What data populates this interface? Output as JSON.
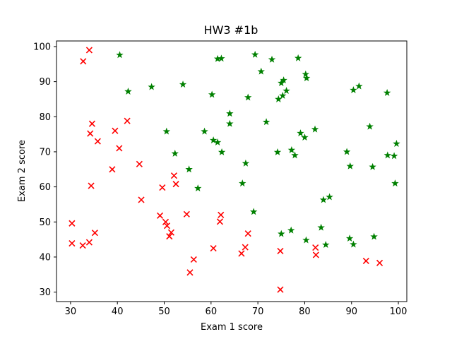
{
  "chart_data": {
    "type": "scatter",
    "title": "HW3 #1b",
    "xlabel": "Exam 1 score",
    "ylabel": "Exam 2 score",
    "xlim": [
      27.0,
      101.8
    ],
    "ylim": [
      27.3,
      101.6
    ],
    "xticks": [
      30,
      40,
      50,
      60,
      70,
      80,
      90,
      100
    ],
    "yticks": [
      30,
      40,
      50,
      60,
      70,
      80,
      90,
      100
    ],
    "grid": false,
    "legend": "none",
    "series": [
      {
        "marker": "x",
        "color": "#ff0000",
        "points": [
          [
            34.0,
            99.0
          ],
          [
            32.7,
            95.8
          ],
          [
            34.6,
            78.0
          ],
          [
            42.1,
            78.8
          ],
          [
            39.5,
            76.0
          ],
          [
            34.2,
            75.2
          ],
          [
            35.8,
            73.0
          ],
          [
            40.4,
            71.0
          ],
          [
            44.7,
            66.5
          ],
          [
            38.9,
            65.0
          ],
          [
            52.1,
            63.2
          ],
          [
            52.5,
            60.8
          ],
          [
            34.4,
            60.3
          ],
          [
            49.6,
            59.8
          ],
          [
            45.1,
            56.3
          ],
          [
            54.8,
            52.2
          ],
          [
            62.1,
            52.0
          ],
          [
            49.1,
            51.8
          ],
          [
            61.9,
            50.1
          ],
          [
            50.3,
            50.0
          ],
          [
            30.3,
            49.6
          ],
          [
            50.6,
            48.9
          ],
          [
            51.5,
            47.0
          ],
          [
            67.9,
            46.7
          ],
          [
            35.2,
            46.9
          ],
          [
            51.1,
            45.9
          ],
          [
            34.0,
            44.2
          ],
          [
            30.3,
            43.9
          ],
          [
            32.6,
            43.3
          ],
          [
            67.3,
            42.8
          ],
          [
            60.5,
            42.5
          ],
          [
            82.3,
            42.7
          ],
          [
            74.8,
            41.7
          ],
          [
            66.5,
            41.0
          ],
          [
            82.4,
            40.6
          ],
          [
            56.3,
            39.3
          ],
          [
            93.1,
            38.9
          ],
          [
            96.0,
            38.3
          ],
          [
            55.5,
            35.6
          ],
          [
            74.8,
            30.7
          ]
        ]
      },
      {
        "marker": "star",
        "color": "#008000",
        "points": [
          [
            40.5,
            97.6
          ],
          [
            69.4,
            97.7
          ],
          [
            61.4,
            96.5
          ],
          [
            62.2,
            96.6
          ],
          [
            73.0,
            96.3
          ],
          [
            78.6,
            96.7
          ],
          [
            70.7,
            92.9
          ],
          [
            80.2,
            92.1
          ],
          [
            80.4,
            91.0
          ],
          [
            75.0,
            89.6
          ],
          [
            75.5,
            90.4
          ],
          [
            54.0,
            89.2
          ],
          [
            47.3,
            88.5
          ],
          [
            91.6,
            88.7
          ],
          [
            90.4,
            87.6
          ],
          [
            42.3,
            87.2
          ],
          [
            76.1,
            87.4
          ],
          [
            97.6,
            86.8
          ],
          [
            60.2,
            86.3
          ],
          [
            75.3,
            86.0
          ],
          [
            67.9,
            85.5
          ],
          [
            74.4,
            85.0
          ],
          [
            64.0,
            80.9
          ],
          [
            71.8,
            78.5
          ],
          [
            64.0,
            78.0
          ],
          [
            93.9,
            77.2
          ],
          [
            82.2,
            76.4
          ],
          [
            50.5,
            75.8
          ],
          [
            58.6,
            75.8
          ],
          [
            79.1,
            75.3
          ],
          [
            80.0,
            74.1
          ],
          [
            60.5,
            73.3
          ],
          [
            61.4,
            72.7
          ],
          [
            99.6,
            72.3
          ],
          [
            77.2,
            70.5
          ],
          [
            74.2,
            69.9
          ],
          [
            62.3,
            69.9
          ],
          [
            89.0,
            70.0
          ],
          [
            52.3,
            69.5
          ],
          [
            77.9,
            69.0
          ],
          [
            97.7,
            69.0
          ],
          [
            99.1,
            68.8
          ],
          [
            67.4,
            66.7
          ],
          [
            89.7,
            65.9
          ],
          [
            94.5,
            65.7
          ],
          [
            55.3,
            65.0
          ],
          [
            66.7,
            61.0
          ],
          [
            99.3,
            61.0
          ],
          [
            57.2,
            59.6
          ],
          [
            85.3,
            57.1
          ],
          [
            84.0,
            56.3
          ],
          [
            69.1,
            52.9
          ],
          [
            83.5,
            48.4
          ],
          [
            77.1,
            47.6
          ],
          [
            75.0,
            46.6
          ],
          [
            94.8,
            45.8
          ],
          [
            89.6,
            45.3
          ],
          [
            80.3,
            44.8
          ],
          [
            84.5,
            43.5
          ],
          [
            90.4,
            43.6
          ]
        ]
      }
    ]
  }
}
